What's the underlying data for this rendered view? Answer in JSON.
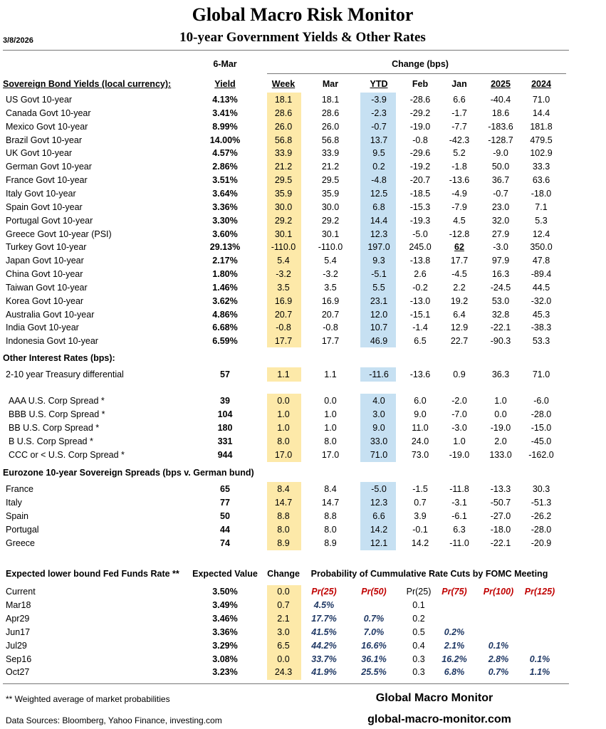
{
  "header": {
    "title": "Global Macro Risk Monitor",
    "subtitle": "10-year Government Yields & Other Rates",
    "date": "3/8/2026"
  },
  "columns": {
    "as_of": "6-Mar",
    "change": "Change (bps)",
    "labels": [
      "Yield",
      "Week",
      "Mar",
      "YTD",
      "Feb",
      "Jan",
      "2025",
      "2024"
    ]
  },
  "sovereign": {
    "title": "Sovereign Bond Yields (local currency):",
    "rows": [
      [
        "US Govt 10-year",
        "4.13%",
        "18.1",
        "18.1",
        "-3.9",
        "-28.6",
        "6.6",
        "-40.4",
        "71.0"
      ],
      [
        "Canada Govt 10-year",
        "3.41%",
        "28.6",
        "28.6",
        "-2.3",
        "-29.2",
        "-1.7",
        "18.6",
        "14.4"
      ],
      [
        "Mexico Govt 10-year",
        "8.99%",
        "26.0",
        "26.0",
        "-0.7",
        "-19.0",
        "-7.7",
        "-183.6",
        "181.8"
      ],
      [
        "Brazil Govt 10-year",
        "14.00%",
        "56.8",
        "56.8",
        "13.7",
        "-0.8",
        "-42.3",
        "-128.7",
        "479.5"
      ],
      [
        "UK Govt 10-year",
        "4.57%",
        "33.9",
        "33.9",
        "9.5",
        "-29.6",
        "5.2",
        "-9.0",
        "102.9"
      ],
      [
        "German Govt 10-year",
        "2.86%",
        "21.2",
        "21.2",
        "0.2",
        "-19.2",
        "-1.8",
        "50.0",
        "33.3"
      ],
      [
        "France Govt 10-year",
        "3.51%",
        "29.5",
        "29.5",
        "-4.8",
        "-20.7",
        "-13.6",
        "36.7",
        "63.6"
      ],
      [
        "Italy Govt 10-year",
        "3.64%",
        "35.9",
        "35.9",
        "12.5",
        "-18.5",
        "-4.9",
        "-0.7",
        "-18.0"
      ],
      [
        "Spain Govt 10-year",
        "3.36%",
        "30.0",
        "30.0",
        "6.8",
        "-15.3",
        "-7.9",
        "23.0",
        "7.1"
      ],
      [
        "Portugal Govt 10-year",
        "3.30%",
        "29.2",
        "29.2",
        "14.4",
        "-19.3",
        "4.5",
        "32.0",
        "5.3"
      ],
      [
        "Greece Govt 10-year (PSI)",
        "3.60%",
        "30.1",
        "30.1",
        "12.3",
        "-5.0",
        "-12.8",
        "27.9",
        "12.4"
      ],
      [
        "Turkey Govt 10-year",
        "29.13%",
        "-110.0",
        "-110.0",
        "197.0",
        "245.0",
        "62",
        "-3.0",
        "350.0"
      ],
      [
        "Japan Govt 10-year",
        "2.17%",
        "5.4",
        "5.4",
        "9.3",
        "-13.8",
        "17.7",
        "97.9",
        "47.8"
      ],
      [
        "China Govt 10-year",
        "1.80%",
        "-3.2",
        "-3.2",
        "-5.1",
        "2.6",
        "-4.5",
        "16.3",
        "-89.4"
      ],
      [
        "Taiwan Govt 10-year",
        "1.46%",
        "3.5",
        "3.5",
        "5.5",
        "-0.2",
        "2.2",
        "-24.5",
        "44.5"
      ],
      [
        "Korea Govt 10-year",
        "3.62%",
        "16.9",
        "16.9",
        "23.1",
        "-13.0",
        "19.2",
        "53.0",
        "-32.0"
      ],
      [
        "Australia Govt 10-year",
        "4.86%",
        "20.7",
        "20.7",
        "12.0",
        "-15.1",
        "6.4",
        "32.8",
        "45.3"
      ],
      [
        "India Govt 10-year",
        "6.68%",
        "-0.8",
        "-0.8",
        "10.7",
        "-1.4",
        "12.9",
        "-22.1",
        "-38.3"
      ],
      [
        "Indonesia Govt 10-year",
        "6.59%",
        "17.7",
        "17.7",
        "46.9",
        "6.5",
        "22.7",
        "-90.3",
        "53.3"
      ]
    ]
  },
  "other_rates": {
    "title": "Other Interest Rates  (bps):",
    "rows": [
      [
        "2-10 year Treasury differential",
        "57",
        "1.1",
        "1.1",
        "-11.6",
        "-13.6",
        "0.9",
        "36.3",
        "71.0"
      ]
    ]
  },
  "credit_spreads": {
    "rows": [
      [
        "AAA U.S. Corp Spread *",
        "39",
        "0.0",
        "0.0",
        "4.0",
        "6.0",
        "-2.0",
        "1.0",
        "-6.0"
      ],
      [
        "BBB U.S. Corp Spread *",
        "104",
        "1.0",
        "1.0",
        "3.0",
        "9.0",
        "-7.0",
        "0.0",
        "-28.0"
      ],
      [
        "BB U.S. Corp Spread *",
        "180",
        "1.0",
        "1.0",
        "9.0",
        "11.0",
        "-3.0",
        "-19.0",
        "-15.0"
      ],
      [
        "B U.S. Corp Spread *",
        "331",
        "8.0",
        "8.0",
        "33.0",
        "24.0",
        "1.0",
        "2.0",
        "-45.0"
      ],
      [
        "CCC or < U.S. Corp Spread *",
        "944",
        "17.0",
        "17.0",
        "71.0",
        "73.0",
        "-19.0",
        "133.0",
        "-162.0"
      ]
    ]
  },
  "eurozone": {
    "title": "Eurozone 10-year Sovereign Spreads (bps v. German bund)",
    "rows": [
      [
        "France",
        "65",
        "8.4",
        "8.4",
        "-5.0",
        "-1.5",
        "-11.8",
        "-13.3",
        "30.3"
      ],
      [
        "Italy",
        "77",
        "14.7",
        "14.7",
        "12.3",
        "0.7",
        "-3.1",
        "-50.7",
        "-51.3"
      ],
      [
        "Spain",
        "50",
        "8.8",
        "8.8",
        "6.6",
        "3.9",
        "-6.1",
        "-27.0",
        "-26.2"
      ],
      [
        "Portugal",
        "44",
        "8.0",
        "8.0",
        "14.2",
        "-0.1",
        "6.3",
        "-18.0",
        "-28.0"
      ],
      [
        "Greece",
        "74",
        "8.9",
        "8.9",
        "12.1",
        "14.2",
        "-11.0",
        "-22.1",
        "-20.9"
      ]
    ]
  },
  "fed": {
    "headers": [
      "Expected lower bound Fed Funds Rate **",
      "Expected Value",
      "Change",
      "Probability of Cummulative Rate Cuts by FOMC Meeting"
    ],
    "rows": [
      [
        "Current",
        "3.50%",
        "0.0",
        "Pr(25)",
        "Pr(50)",
        "Pr(25)",
        "Pr(75)",
        "Pr(100)",
        "Pr(125)"
      ],
      [
        "Mar18",
        "3.49%",
        "0.7",
        "4.5%",
        null,
        "0.1",
        null,
        null,
        null
      ],
      [
        "Apr29",
        "3.46%",
        "2.1",
        "17.7%",
        "0.7%",
        "0.2",
        null,
        null,
        null
      ],
      [
        "Jun17",
        "3.36%",
        "3.0",
        "41.5%",
        "7.0%",
        "0.5",
        "0.2%",
        null,
        null
      ],
      [
        "Jul29",
        "3.29%",
        "6.5",
        "44.2%",
        "16.6%",
        "0.4",
        "2.1%",
        "0.1%",
        null
      ],
      [
        "Sep16",
        "3.08%",
        "0.0",
        "33.7%",
        "36.1%",
        "0.3",
        "16.2%",
        "2.8%",
        "0.1%"
      ],
      [
        "Oct27",
        "3.23%",
        "24.3",
        "41.9%",
        "25.5%",
        "0.3",
        "6.8%",
        "0.7%",
        "1.1%"
      ]
    ]
  },
  "footer": {
    "note": "** Weighted average of market probabilities",
    "brand": "Global Macro Monitor",
    "sources": "Data Sources:  Bloomberg,  Yahoo Finance, investing.com",
    "site": "global-macro-monitor.com"
  }
}
